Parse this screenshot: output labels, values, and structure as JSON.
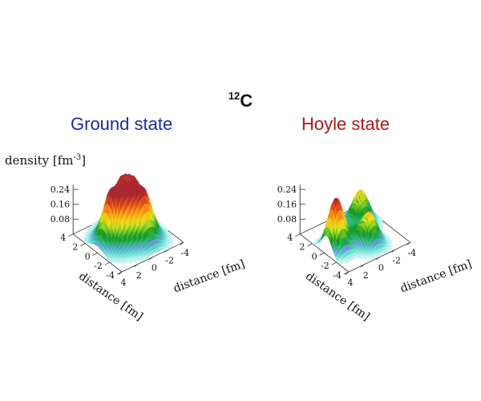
{
  "figure": {
    "title_sup": "12",
    "title_main": "C",
    "z_label_main": "density [fm",
    "z_label_sup": "-3",
    "z_label_end": "]"
  },
  "chart_data": [
    {
      "type": "surface",
      "title": "Ground state",
      "title_color": "#1a2aa0",
      "zlabel": "density [fm-3]",
      "xlabel": "distance [fm]",
      "ylabel": "distance [fm]",
      "x_range": [
        -4,
        4
      ],
      "y_range": [
        -4,
        4
      ],
      "z_ticks": [
        "0.08",
        "0.16",
        "0.24"
      ],
      "x_ticks": [
        "4",
        "2",
        "0",
        "-2",
        "-4"
      ],
      "y_ticks": [
        "4",
        "2",
        "0",
        "-2",
        "-4"
      ],
      "peaks": [
        {
          "x": 1.7,
          "y": 0.0,
          "height": 0.27,
          "width": 1.1
        },
        {
          "x": -1.0,
          "y": 1.4,
          "height": 0.26,
          "width": 1.1
        },
        {
          "x": -0.7,
          "y": -1.4,
          "height": 0.22,
          "width": 1.1
        },
        {
          "x": 0.2,
          "y": 0.0,
          "height": 0.12,
          "width": 1.6
        }
      ]
    },
    {
      "type": "surface",
      "title": "Hoyle state",
      "title_color": "#b01818",
      "xlabel": "distance [fm]",
      "ylabel": "distance [fm]",
      "x_range": [
        -4,
        4
      ],
      "y_range": [
        -4,
        4
      ],
      "z_ticks": [
        "0.08",
        "0.16",
        "0.24"
      ],
      "x_ticks": [
        "4",
        "2",
        "0",
        "-2",
        "-4"
      ],
      "y_ticks": [
        "4",
        "2",
        "0",
        "-2",
        "-4"
      ],
      "peaks": [
        {
          "x": 2.8,
          "y": -0.4,
          "height": 0.27,
          "width": 0.85
        },
        {
          "x": -2.0,
          "y": 1.6,
          "height": 0.17,
          "width": 0.85
        },
        {
          "x": -0.4,
          "y": -1.9,
          "height": 0.16,
          "width": 0.85
        },
        {
          "x": 0.3,
          "y": 0.2,
          "height": 0.06,
          "width": 1.4
        }
      ]
    }
  ]
}
